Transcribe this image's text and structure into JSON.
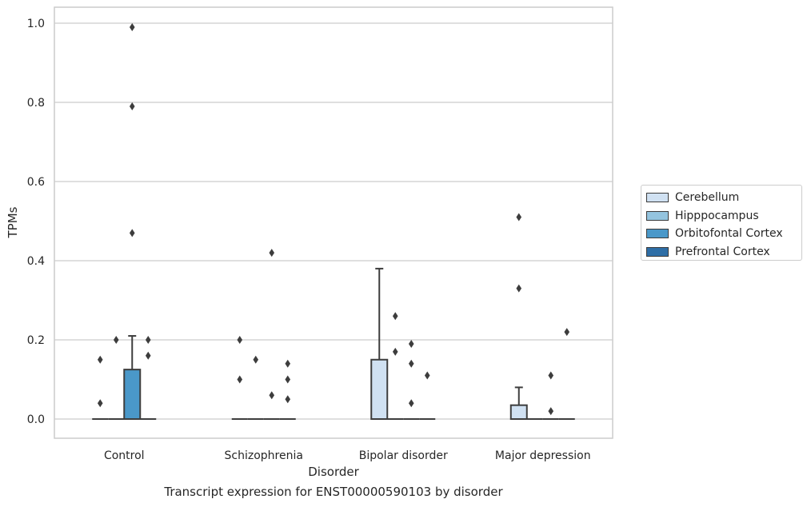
{
  "chart_data": {
    "type": "box",
    "title": "",
    "caption": "Transcript expression for ENST00000590103 by disorder",
    "xlabel": "Disorder",
    "ylabel": "TPMs",
    "ylim": [
      -0.05,
      1.04
    ],
    "yticks": [
      0.0,
      0.2,
      0.4,
      0.6,
      0.8,
      1.0
    ],
    "ytick_labels": [
      "0.0",
      "0.2",
      "0.4",
      "0.6",
      "0.8",
      "1.0"
    ],
    "grid": "horizontal",
    "legend_position": "outside-right",
    "categories": [
      "Control",
      "Schizophrenia",
      "Bipolar disorder",
      "Major depression"
    ],
    "series": [
      {
        "name": "Cerebellum",
        "color": "#d0e1f2",
        "boxes": [
          {
            "q1": 0,
            "median": 0,
            "q3": 0,
            "whisker_low": 0,
            "whisker_high": 0,
            "outliers": [
              0.04,
              0.15
            ]
          },
          {
            "q1": 0,
            "median": 0,
            "q3": 0,
            "whisker_low": 0,
            "whisker_high": 0,
            "outliers": [
              0.1,
              0.2
            ]
          },
          {
            "q1": 0,
            "median": 0,
            "q3": 0.15,
            "whisker_low": 0,
            "whisker_high": 0.38,
            "outliers": []
          },
          {
            "q1": 0,
            "median": 0,
            "q3": 0.035,
            "whisker_low": 0,
            "whisker_high": 0.08,
            "outliers": [
              0.33,
              0.51
            ]
          }
        ]
      },
      {
        "name": "Hipppocampus",
        "color": "#94c4df",
        "boxes": [
          {
            "q1": 0,
            "median": 0,
            "q3": 0,
            "whisker_low": 0,
            "whisker_high": 0,
            "outliers": [
              0.2
            ]
          },
          {
            "q1": 0,
            "median": 0,
            "q3": 0,
            "whisker_low": 0,
            "whisker_high": 0,
            "outliers": [
              0.15
            ]
          },
          {
            "q1": 0,
            "median": 0,
            "q3": 0,
            "whisker_low": 0,
            "whisker_high": 0,
            "outliers": [
              0.17,
              0.26
            ]
          },
          {
            "q1": 0,
            "median": 0,
            "q3": 0,
            "whisker_low": 0,
            "whisker_high": 0,
            "outliers": []
          }
        ]
      },
      {
        "name": "Orbitofontal Cortex",
        "color": "#4a98c9",
        "boxes": [
          {
            "q1": 0,
            "median": 0,
            "q3": 0.125,
            "whisker_low": 0,
            "whisker_high": 0.21,
            "outliers": [
              0.47,
              0.79,
              0.99
            ]
          },
          {
            "q1": 0,
            "median": 0,
            "q3": 0,
            "whisker_low": 0,
            "whisker_high": 0,
            "outliers": [
              0.06,
              0.42
            ]
          },
          {
            "q1": 0,
            "median": 0,
            "q3": 0,
            "whisker_low": 0,
            "whisker_high": 0,
            "outliers": [
              0.04,
              0.14,
              0.19
            ]
          },
          {
            "q1": 0,
            "median": 0,
            "q3": 0,
            "whisker_low": 0,
            "whisker_high": 0,
            "outliers": [
              0.02,
              0.11
            ]
          }
        ]
      },
      {
        "name": "Prefrontal Cortex",
        "color": "#2e6ea6",
        "boxes": [
          {
            "q1": 0,
            "median": 0,
            "q3": 0,
            "whisker_low": 0,
            "whisker_high": 0,
            "outliers": [
              0.16,
              0.2
            ]
          },
          {
            "q1": 0,
            "median": 0,
            "q3": 0,
            "whisker_low": 0,
            "whisker_high": 0,
            "outliers": [
              0.05,
              0.1,
              0.14
            ]
          },
          {
            "q1": 0,
            "median": 0,
            "q3": 0,
            "whisker_low": 0,
            "whisker_high": 0,
            "outliers": [
              0.11
            ]
          },
          {
            "q1": 0,
            "median": 0,
            "q3": 0,
            "whisker_low": 0,
            "whisker_high": 0,
            "outliers": [
              0.22
            ]
          }
        ]
      }
    ]
  }
}
